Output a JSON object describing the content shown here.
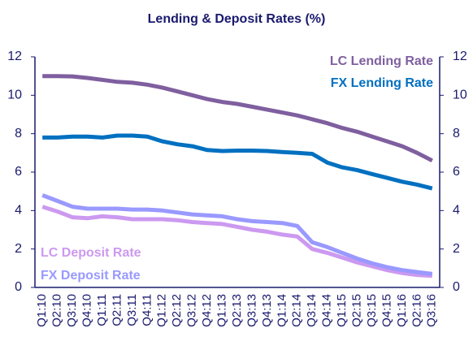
{
  "chart_data": {
    "type": "line",
    "title": "Lending & Deposit Rates (%)",
    "categories": [
      "Q1:10",
      "Q2:10",
      "Q3:10",
      "Q4:10",
      "Q1:11",
      "Q2:11",
      "Q3:11",
      "Q4:11",
      "Q1:12",
      "Q2:12",
      "Q3:12",
      "Q4:12",
      "Q1:13",
      "Q2:13",
      "Q3:13",
      "Q4:13",
      "Q1:14",
      "Q2:14",
      "Q3:14",
      "Q4:14",
      "Q1:15",
      "Q2:15",
      "Q3:15",
      "Q4:15",
      "Q1:16",
      "Q2:16",
      "Q3:16"
    ],
    "series": [
      {
        "name": "LC Lending Rate",
        "color": "#7f5f9f",
        "values": [
          11.0,
          11.0,
          10.98,
          10.9,
          10.8,
          10.7,
          10.65,
          10.55,
          10.4,
          10.2,
          10.0,
          9.8,
          9.65,
          9.55,
          9.4,
          9.25,
          9.1,
          8.95,
          8.75,
          8.55,
          8.3,
          8.1,
          7.85,
          7.6,
          7.35,
          7.0,
          6.6
        ]
      },
      {
        "name": "FX Lending Rate",
        "color": "#0070c0",
        "values": [
          7.8,
          7.8,
          7.85,
          7.85,
          7.8,
          7.9,
          7.9,
          7.85,
          7.6,
          7.45,
          7.35,
          7.15,
          7.1,
          7.12,
          7.12,
          7.1,
          7.05,
          7.0,
          6.95,
          6.5,
          6.25,
          6.1,
          5.9,
          5.7,
          5.5,
          5.35,
          5.15
        ]
      },
      {
        "name": "LC Deposit Rate",
        "color": "#cc99f0",
        "values": [
          4.2,
          3.95,
          3.65,
          3.6,
          3.7,
          3.65,
          3.55,
          3.55,
          3.55,
          3.5,
          3.4,
          3.35,
          3.3,
          3.15,
          3.0,
          2.9,
          2.75,
          2.65,
          2.0,
          1.8,
          1.55,
          1.3,
          1.1,
          0.9,
          0.75,
          0.65,
          0.6
        ]
      },
      {
        "name": "FX Deposit Rate",
        "color": "#9999ff",
        "values": [
          4.8,
          4.5,
          4.2,
          4.1,
          4.1,
          4.1,
          4.05,
          4.05,
          4.0,
          3.9,
          3.8,
          3.75,
          3.7,
          3.55,
          3.45,
          3.4,
          3.35,
          3.2,
          2.35,
          2.1,
          1.8,
          1.5,
          1.25,
          1.05,
          0.9,
          0.8,
          0.7
        ]
      }
    ],
    "ylim": [
      0,
      12
    ],
    "yticks": [
      0,
      2,
      4,
      6,
      8,
      10,
      12
    ],
    "y2lim": [
      0,
      12
    ],
    "y2ticks": [
      0,
      2,
      4,
      6,
      8,
      10,
      12
    ]
  }
}
